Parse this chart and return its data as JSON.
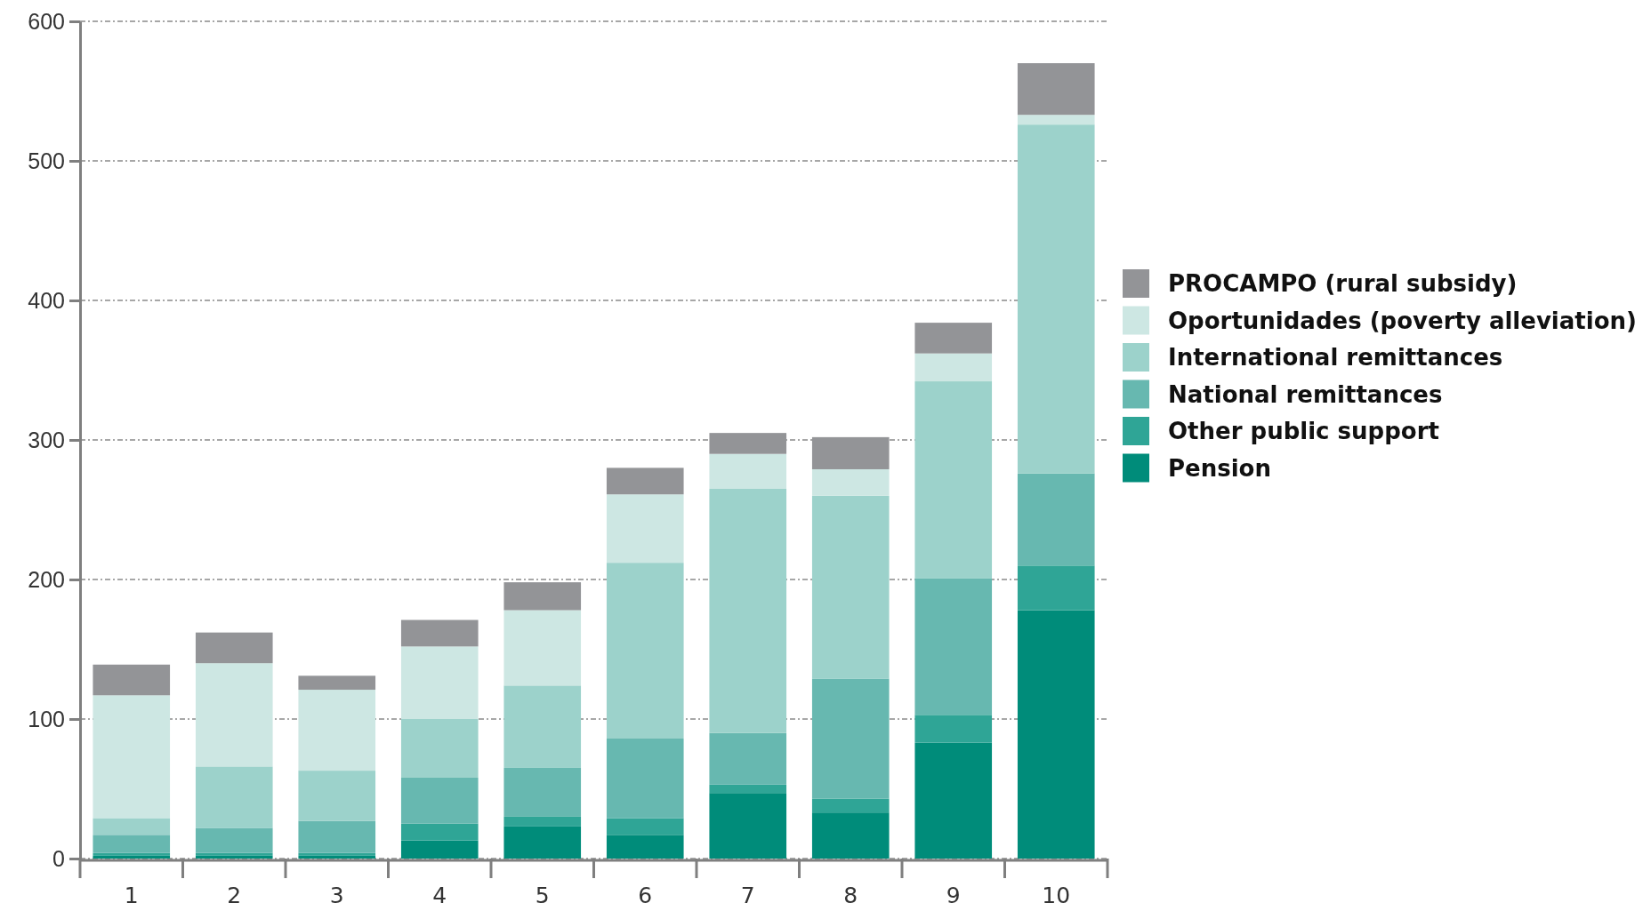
{
  "chart_data": {
    "type": "bar",
    "stacked": true,
    "categories": [
      "1",
      "2",
      "3",
      "4",
      "5",
      "6",
      "7",
      "8",
      "9",
      "10"
    ],
    "series": [
      {
        "name": "Pension",
        "color": "#008c7a",
        "values": [
          2,
          2,
          2,
          13,
          23,
          17,
          47,
          33,
          83,
          178
        ]
      },
      {
        "name": "Other public support",
        "color": "#2fa596",
        "values": [
          2,
          2,
          2,
          12,
          7,
          12,
          6,
          10,
          20,
          32
        ]
      },
      {
        "name": "National remittances",
        "color": "#67b8b0",
        "values": [
          13,
          18,
          23,
          33,
          35,
          57,
          37,
          86,
          98,
          66
        ]
      },
      {
        "name": "International remittances",
        "color": "#9cd2cb",
        "values": [
          12,
          44,
          36,
          42,
          59,
          126,
          175,
          131,
          141,
          250
        ]
      },
      {
        "name": "Oportunidades (poverty alleviation)",
        "color": "#cde7e3",
        "values": [
          88,
          74,
          58,
          52,
          54,
          49,
          25,
          19,
          20,
          7
        ]
      },
      {
        "name": "PROCAMPO (rural subsidy)",
        "color": "#939497",
        "values": [
          22,
          22,
          10,
          19,
          20,
          19,
          15,
          23,
          22,
          37
        ]
      }
    ],
    "ylim": [
      0,
      600
    ],
    "yticks": [
      0,
      100,
      200,
      300,
      400,
      500,
      600
    ],
    "grid": "y",
    "legend": "right"
  }
}
